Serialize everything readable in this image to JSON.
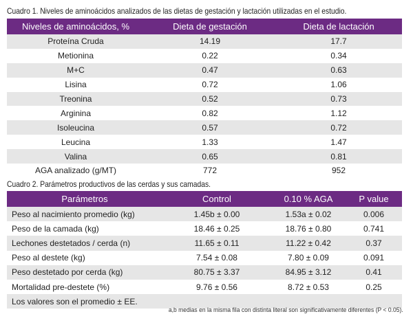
{
  "table1": {
    "caption": "Cuadro 1. Niveles de aminoácidos analizados de las dietas de gestación y lactación utilizadas en el estudio.",
    "headers": [
      "Niveles de aminoácidos, %",
      "Dieta de gestación",
      "Dieta de lactación"
    ],
    "rows": [
      [
        "Proteína Cruda",
        "14.19",
        "17.7"
      ],
      [
        "Metionina",
        "0.22",
        "0.34"
      ],
      [
        "M+C",
        "0.47",
        "0.63"
      ],
      [
        "Lisina",
        "0.72",
        "1.06"
      ],
      [
        "Treonina",
        "0.52",
        "0.73"
      ],
      [
        "Arginina",
        "0.82",
        "1.12"
      ],
      [
        "Isoleucina",
        "0.57",
        "0.72"
      ],
      [
        "Leucina",
        "1.33",
        "1.47"
      ],
      [
        "Valina",
        "0.65",
        "0.81"
      ],
      [
        "AGA analizado (g/MT)",
        "772",
        "952"
      ]
    ]
  },
  "table2": {
    "caption": "Cuadro 2. Parámetros productivos de las cerdas y sus camadas.",
    "headers": [
      "Parámetros",
      "Control",
      "0.10 % AGA",
      "P value"
    ],
    "rows": [
      [
        "Peso al nacimiento promedio (kg)",
        "1.45b ± 0.00",
        "1.53a ± 0.02",
        "0.006"
      ],
      [
        "Peso de la camada (kg)",
        "18.46 ± 0.25",
        "18.76 ± 0.80",
        "0.741"
      ],
      [
        "Lechones destetados / cerda (n)",
        "11.65 ± 0.11",
        "11.22 ± 0.42",
        "0.37"
      ],
      [
        "Peso al destete (kg)",
        "7.54 ± 0.08",
        "7.80 ± 0.09",
        "0.091"
      ],
      [
        "Peso destetado por cerda (kg)",
        "80.75 ± 3.37",
        "84.95 ± 3.12",
        "0.41"
      ],
      [
        "Mortalidad pre-destete (%)",
        "9.76 ± 0.56",
        "8.72 ± 0.53",
        "0.25"
      ]
    ],
    "note": "Los valores son el promedio ± EE."
  },
  "footnote": "a,b medias en la misma fila con distinta literal son significativamente diferentes (P < 0.05).",
  "colors": {
    "header_bg": "#6c2b83",
    "header_text": "#ffffff",
    "stripe": "#e6e6e6"
  }
}
